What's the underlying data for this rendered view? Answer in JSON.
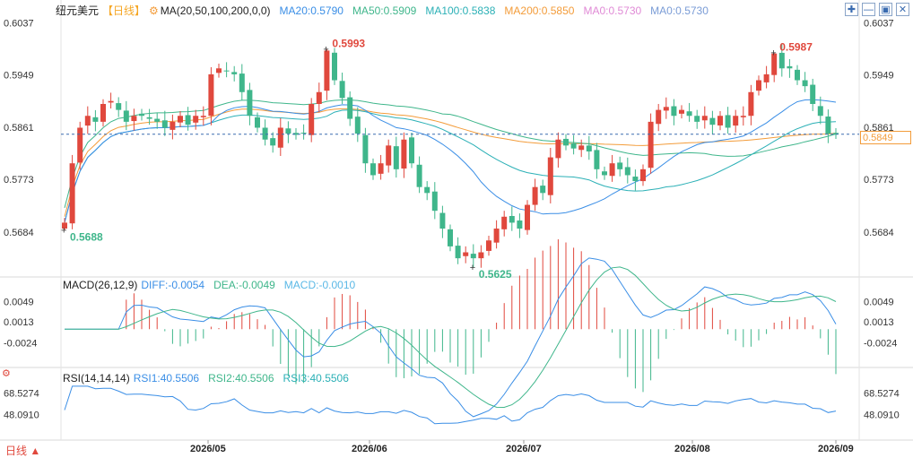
{
  "header": {
    "instrument": "纽元美元",
    "period": "【日线】",
    "ma_label": "MA(20,50,100,200,0,0)",
    "ma_values": [
      {
        "text": "MA20:0.5790",
        "color": "#3a8ee6"
      },
      {
        "text": "MA50:0.5909",
        "color": "#3fb68b"
      },
      {
        "text": "MA100:0.5838",
        "color": "#2bb0b6"
      },
      {
        "text": "MA200:0.5850",
        "color": "#f39c3a"
      },
      {
        "text": "MA0:0.5730",
        "color": "#e08ad6"
      },
      {
        "text": "MA0:0.5730",
        "color": "#7a9cd6"
      }
    ]
  },
  "toolbar": {
    "icons": [
      "crosshair-icon",
      "minus-icon",
      "fullscreen-icon",
      "close-icon"
    ]
  },
  "macd": {
    "label": "MACD(26,12,9)",
    "values": [
      {
        "text": "DIFF:-0.0054",
        "color": "#3a8ee6"
      },
      {
        "text": "DEA:-0.0049",
        "color": "#3fb68b"
      },
      {
        "text": "MACD:-0.0010",
        "color": "#5ab8e6"
      }
    ]
  },
  "rsi": {
    "label": "RSI(14,14,14)",
    "values": [
      {
        "text": "RSI1:40.5506",
        "color": "#3a8ee6"
      },
      {
        "text": "RSI2:40.5506",
        "color": "#3fb68b"
      },
      {
        "text": "RSI3:40.5506",
        "color": "#2bb0b6"
      }
    ]
  },
  "footer": {
    "period_label": "日线 ▲"
  },
  "last_price_tag": "0.5849",
  "chart_data": {
    "type": "candlestick",
    "price_axis": {
      "ticks": [
        "0.6037",
        "0.5949",
        "0.5861",
        "0.5773",
        "0.5684"
      ],
      "range": [
        0.561,
        0.6045
      ]
    },
    "macd_axis": {
      "ticks": [
        "0.0049",
        "0.0013",
        "-0.0024"
      ],
      "range": [
        -0.006,
        0.0072
      ]
    },
    "rsi_axis": {
      "ticks": [
        "68.5274",
        "48.0910"
      ],
      "range": [
        25,
        80
      ]
    },
    "date_labels": [
      "2026/05",
      "2026/06",
      "2026/07",
      "2026/08",
      "2026/09"
    ],
    "annotations": [
      {
        "text": "0.5993",
        "value": 0.5993,
        "kind": "high",
        "color": "#e0483d"
      },
      {
        "text": "0.5688",
        "value": 0.5688,
        "kind": "low",
        "color": "#3fb68b"
      },
      {
        "text": "0.5625",
        "value": 0.5625,
        "kind": "low",
        "color": "#3fb68b"
      },
      {
        "text": "0.5987",
        "value": 0.5987,
        "kind": "high",
        "color": "#e0483d"
      }
    ],
    "last_price": 0.5849,
    "anchors_close": [
      0.57,
      0.58,
      0.586,
      0.588,
      0.587,
      0.59,
      0.5905,
      0.589,
      0.587,
      0.588,
      0.588,
      0.5875,
      0.587,
      0.586,
      0.587,
      0.588,
      0.5865,
      0.588,
      0.588,
      0.595,
      0.596,
      0.5955,
      0.595,
      0.592,
      0.588,
      0.586,
      0.584,
      0.583,
      0.586,
      0.585,
      0.5848,
      0.585,
      0.59,
      0.592,
      0.599,
      0.594,
      0.591,
      0.5875,
      0.585,
      0.58,
      0.578,
      0.58,
      0.583,
      0.579,
      0.584,
      0.58,
      0.576,
      0.575,
      0.572,
      0.569,
      0.566,
      0.564,
      0.565,
      0.564,
      0.565,
      0.567,
      0.569,
      0.571,
      0.57,
      0.569,
      0.573,
      0.576,
      0.575,
      0.581,
      0.584,
      0.583,
      0.5825,
      0.583,
      0.582,
      0.579,
      0.578,
      0.58,
      0.579,
      0.578,
      0.577,
      0.579,
      0.587,
      0.589,
      0.5895,
      0.588,
      0.589,
      0.588,
      0.587,
      0.588,
      0.5865,
      0.588,
      0.586,
      0.588,
      0.588,
      0.592,
      0.594,
      0.595,
      0.5985,
      0.596,
      0.596,
      0.594,
      0.593,
      0.59,
      0.588,
      0.585,
      0.5849
    ]
  }
}
